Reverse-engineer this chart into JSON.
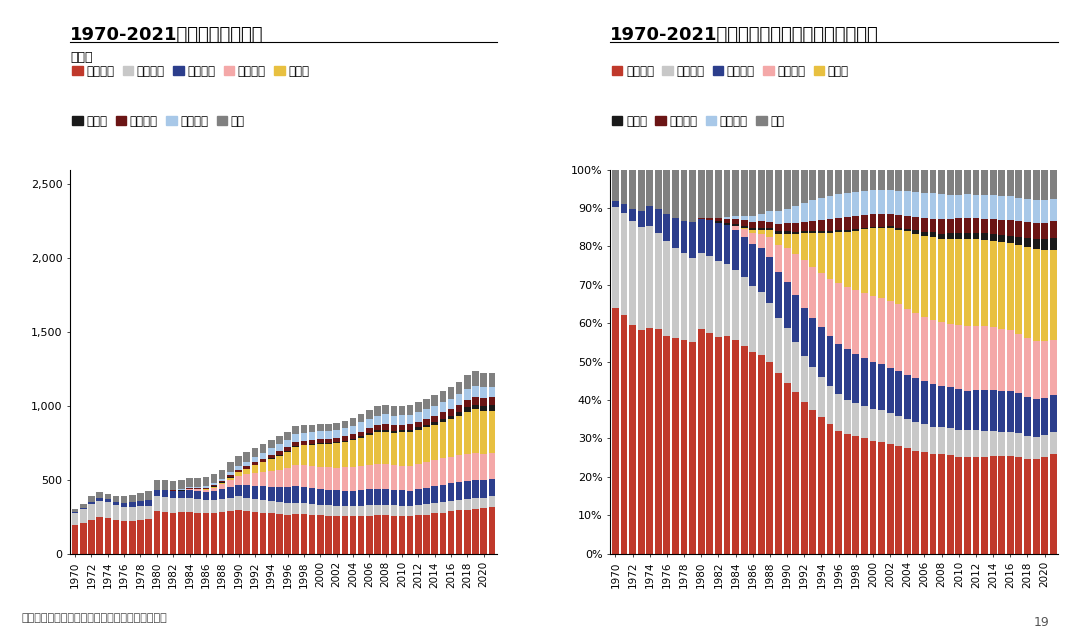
{
  "title_left": "1970-2021年日本软饮生产量",
  "title_right": "1970-2021年日本软饮各细分品类生产量占比",
  "ylabel_left": "千万升",
  "source": "资料来源：日本清凉饮料协会，野村东方国际证券",
  "page": "19",
  "years": [
    1970,
    1971,
    1972,
    1973,
    1974,
    1975,
    1976,
    1977,
    1978,
    1979,
    1980,
    1981,
    1982,
    1983,
    1984,
    1985,
    1986,
    1987,
    1988,
    1989,
    1990,
    1991,
    1992,
    1993,
    1994,
    1995,
    1996,
    1997,
    1998,
    1999,
    2000,
    2001,
    2002,
    2003,
    2004,
    2005,
    2006,
    2007,
    2008,
    2009,
    2010,
    2011,
    2012,
    2013,
    2014,
    2015,
    2016,
    2017,
    2018,
    2019,
    2020,
    2021
  ],
  "categories": [
    "碳酸饮料",
    "果汁饮料",
    "咖啡饮料",
    "茶系饮料",
    "矿泉水",
    "豆乳类",
    "蔬菜饮料",
    "运动饮料",
    "其他"
  ],
  "colors": [
    "#c0392b",
    "#c8c8c8",
    "#2c3e8c",
    "#f4a8a8",
    "#e8c040",
    "#1a1a1a",
    "#6b1515",
    "#a8c8e8",
    "#808080"
  ],
  "data_碳酸": [
    195,
    210,
    230,
    245,
    238,
    228,
    220,
    222,
    228,
    232,
    290,
    285,
    278,
    282,
    285,
    278,
    272,
    278,
    284,
    290,
    294,
    288,
    283,
    278,
    273,
    268,
    263,
    268,
    266,
    263,
    258,
    256,
    253,
    253,
    253,
    253,
    256,
    258,
    260,
    256,
    253,
    252,
    258,
    263,
    272,
    278,
    288,
    293,
    298,
    303,
    308,
    318
  ],
  "data_果汁": [
    80,
    90,
    105,
    112,
    108,
    98,
    96,
    93,
    93,
    93,
    98,
    98,
    98,
    93,
    93,
    93,
    88,
    88,
    88,
    88,
    93,
    90,
    86,
    83,
    81,
    78,
    78,
    76,
    76,
    73,
    73,
    71,
    71,
    70,
    70,
    70,
    71,
    71,
    71,
    70,
    70,
    70,
    71,
    71,
    71,
    70,
    70,
    71,
    71,
    71,
    70,
    70
  ],
  "data_咖啡": [
    5,
    8,
    12,
    18,
    22,
    24,
    27,
    31,
    34,
    39,
    44,
    47,
    49,
    51,
    54,
    54,
    57,
    61,
    67,
    74,
    79,
    84,
    89,
    94,
    99,
    104,
    109,
    114,
    111,
    109,
    107,
    105,
    104,
    104,
    104,
    107,
    109,
    111,
    109,
    107,
    105,
    104,
    107,
    111,
    114,
    117,
    119,
    121,
    124,
    124,
    119,
    117
  ],
  "data_茶系": [
    0,
    0,
    0,
    0,
    0,
    0,
    0,
    0,
    0,
    0,
    0,
    0,
    0,
    0,
    5,
    10,
    15,
    20,
    30,
    44,
    59,
    74,
    89,
    99,
    109,
    119,
    129,
    139,
    144,
    147,
    149,
    151,
    154,
    157,
    159,
    161,
    164,
    167,
    167,
    164,
    167,
    169,
    171,
    174,
    177,
    179,
    179,
    181,
    184,
    184,
    179,
    177
  ],
  "data_矿泉水": [
    0,
    0,
    0,
    0,
    0,
    0,
    0,
    0,
    0,
    0,
    0,
    0,
    0,
    0,
    0,
    2,
    4,
    6,
    10,
    18,
    25,
    35,
    50,
    65,
    80,
    95,
    110,
    125,
    135,
    145,
    155,
    160,
    168,
    175,
    185,
    195,
    205,
    215,
    218,
    220,
    225,
    228,
    232,
    235,
    240,
    248,
    255,
    268,
    285,
    295,
    290,
    285
  ],
  "data_豆乳": [
    0,
    0,
    0,
    0,
    0,
    0,
    0,
    0,
    0,
    0,
    0,
    0,
    2,
    3,
    3,
    3,
    3,
    3,
    3,
    4,
    4,
    4,
    4,
    4,
    4,
    4,
    4,
    4,
    4,
    4,
    4,
    4,
    4,
    5,
    6,
    8,
    10,
    12,
    14,
    15,
    16,
    16,
    17,
    18,
    19,
    20,
    22,
    24,
    28,
    32,
    36,
    40
  ],
  "data_蔬菜": [
    0,
    0,
    0,
    0,
    0,
    0,
    0,
    0,
    0,
    0,
    2,
    3,
    4,
    5,
    6,
    7,
    8,
    9,
    10,
    12,
    14,
    16,
    18,
    20,
    22,
    24,
    26,
    28,
    28,
    28,
    28,
    28,
    28,
    29,
    30,
    32,
    34,
    36,
    38,
    38,
    38,
    38,
    38,
    40,
    42,
    44,
    46,
    48,
    50,
    52,
    52,
    52
  ],
  "data_运动": [
    0,
    0,
    0,
    0,
    0,
    0,
    0,
    0,
    0,
    0,
    0,
    0,
    0,
    2,
    4,
    6,
    8,
    10,
    15,
    20,
    25,
    30,
    35,
    40,
    44,
    48,
    52,
    55,
    55,
    55,
    55,
    55,
    56,
    58,
    60,
    62,
    64,
    65,
    65,
    62,
    62,
    62,
    63,
    65,
    66,
    68,
    70,
    72,
    74,
    75,
    72,
    70
  ],
  "data_其他": [
    25,
    30,
    40,
    45,
    38,
    40,
    45,
    50,
    55,
    58,
    62,
    62,
    62,
    62,
    62,
    62,
    62,
    62,
    62,
    67,
    67,
    65,
    62,
    59,
    57,
    55,
    52,
    52,
    51,
    49,
    47,
    47,
    47,
    49,
    52,
    55,
    59,
    62,
    65,
    65,
    65,
    65,
    67,
    69,
    72,
    75,
    79,
    85,
    92,
    97,
    97,
    95
  ],
  "background_color": "#ffffff",
  "title_fontsize": 13,
  "legend_fontsize": 8.5,
  "axis_fontsize": 8
}
